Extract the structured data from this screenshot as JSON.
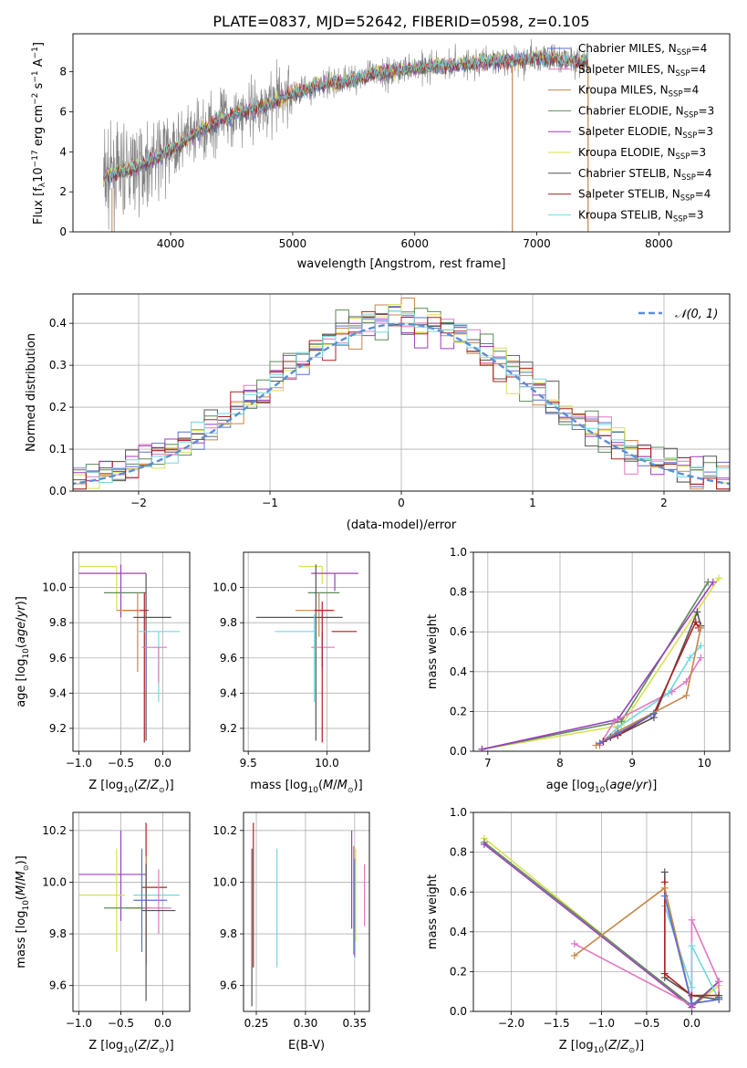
{
  "title": "PLATE=0837, MJD=52642, FIBERID=0598, z=0.105",
  "chart_data": [
    {
      "id": "spectrum",
      "type": "line",
      "xlabel": "wavelength [Angstrom, rest frame]",
      "ylabel": "Flux [f_λ 10^-17 erg cm^-2 s^-1 A^-1]",
      "ylabel_parts": [
        "Flux [f",
        "λ",
        "10",
        "−17",
        " erg cm",
        "−2",
        " s",
        "−1",
        " A",
        "−1",
        "]"
      ],
      "xlim": [
        3200,
        8580
      ],
      "ylim": [
        0,
        9.9
      ],
      "xticks": [
        4000,
        5000,
        6000,
        7000,
        8000
      ],
      "yticks": [
        0,
        2,
        4,
        6,
        8
      ],
      "legend_position": "top-right",
      "legend": [
        {
          "name": "Chabrier MILES, N",
          "sub": "SSP",
          "tail": "=4",
          "color": "#5a6fd8"
        },
        {
          "name": "Salpeter MILES, N",
          "sub": "SSP",
          "tail": "=4",
          "color": "#e377c2"
        },
        {
          "name": "Kroupa MILES, N",
          "sub": "SSP",
          "tail": "=4",
          "color": "#c7864a"
        },
        {
          "name": "Chabrier ELODIE, N",
          "sub": "SSP",
          "tail": "=3",
          "color": "#5a8a5a"
        },
        {
          "name": "Salpeter ELODIE, N",
          "sub": "SSP",
          "tail": "=3",
          "color": "#9c3fc0"
        },
        {
          "name": "Kroupa ELODIE, N",
          "sub": "SSP",
          "tail": "=3",
          "color": "#d8e050"
        },
        {
          "name": "Chabrier STELIB, N",
          "sub": "SSP",
          "tail": "=4",
          "color": "#555555"
        },
        {
          "name": "Salpeter STELIB, N",
          "sub": "SSP",
          "tail": "=4",
          "color": "#b02020"
        },
        {
          "name": "Kroupa STELIB, N",
          "sub": "SSP",
          "tail": "=3",
          "color": "#70d8e0"
        }
      ],
      "data_color": "#808080",
      "data_x_range": [
        3450,
        7420
      ],
      "continuum": [
        [
          3450,
          2.7
        ],
        [
          3600,
          3.0
        ],
        [
          3750,
          3.3
        ],
        [
          3900,
          3.7
        ],
        [
          4000,
          4.1
        ],
        [
          4200,
          4.9
        ],
        [
          4400,
          5.6
        ],
        [
          4600,
          6.0
        ],
        [
          4800,
          6.4
        ],
        [
          5000,
          6.9
        ],
        [
          5200,
          7.3
        ],
        [
          5400,
          7.5
        ],
        [
          5600,
          7.8
        ],
        [
          5800,
          8.0
        ],
        [
          6000,
          8.2
        ],
        [
          6200,
          8.3
        ],
        [
          6400,
          8.4
        ],
        [
          6600,
          8.5
        ],
        [
          6800,
          8.6
        ],
        [
          7000,
          8.7
        ],
        [
          7200,
          8.6
        ],
        [
          7420,
          8.5
        ]
      ]
    },
    {
      "id": "residuals",
      "type": "line",
      "xlabel": "(data-model)/error",
      "ylabel": "Normed distribution",
      "xlim": [
        -2.5,
        2.5
      ],
      "ylim": [
        0,
        0.47
      ],
      "xticks": [
        -2,
        -1,
        0,
        1,
        2
      ],
      "yticks": [
        0.0,
        0.1,
        0.2,
        0.3,
        0.4
      ],
      "grid": true,
      "legend_position": "top-right",
      "reference": {
        "name": "𝒩(0, 1)",
        "mean": 0,
        "sigma": 1,
        "color": "#5a8fd8",
        "style": "dashed"
      },
      "histogram_bin_width": 0.1
    },
    {
      "id": "age_vs_Z",
      "type": "scatter",
      "xlabel": "Z [log10(Z/Z☉)]",
      "ylabel": "age [log10(age/yr)]",
      "xlim": [
        -1.07,
        0.32
      ],
      "ylim": [
        9.07,
        10.2
      ],
      "xticks": [
        -1.0,
        -0.5,
        0.0
      ],
      "yticks": [
        9.2,
        9.4,
        9.6,
        9.8,
        10.0
      ],
      "grid": true,
      "points": [
        {
          "x": -0.55,
          "y": 10.12,
          "xerr": [
            0.45,
            0.0
          ],
          "yerr": [
            0.25,
            0.0
          ],
          "color": "#d8e050"
        },
        {
          "x": -0.5,
          "y": 10.08,
          "xerr": [
            0.5,
            0.3
          ],
          "yerr": [
            0.25,
            0.05
          ],
          "color": "#9c3fc0"
        },
        {
          "x": -0.35,
          "y": 9.97,
          "xerr": [
            0.35,
            0.15
          ],
          "yerr": [
            0.0,
            0.0
          ],
          "color": "#5a8a5a"
        },
        {
          "x": -0.22,
          "y": 9.87,
          "xerr": [
            0.25,
            0.05
          ],
          "yerr": [
            0.75,
            0.1
          ],
          "color": "#b02020"
        },
        {
          "x": -0.3,
          "y": 9.87,
          "xerr": [
            0.25,
            0.03
          ],
          "yerr": [
            0.35,
            0.1
          ],
          "color": "#c7864a"
        },
        {
          "x": -0.2,
          "y": 9.83,
          "xerr": [
            0.15,
            0.3
          ],
          "yerr": [
            0.7,
            0.25
          ],
          "color": "#555555"
        },
        {
          "x": -0.05,
          "y": 9.75,
          "xerr": [
            0.25,
            0.25
          ],
          "yerr": [
            0.4,
            0.0
          ],
          "color": "#70d8e0"
        },
        {
          "x": -0.2,
          "y": 9.75,
          "xerr": [
            0.0,
            0.0
          ],
          "yerr": [
            0.33,
            0.0
          ],
          "color": "#5a6fd8"
        },
        {
          "x": -0.05,
          "y": 9.66,
          "xerr": [
            0.2,
            0.1
          ],
          "yerr": [
            0.2,
            0.0
          ],
          "color": "#e377c2"
        }
      ]
    },
    {
      "id": "age_vs_mass",
      "type": "scatter",
      "xlabel": "mass [log10(M/M☉)]",
      "ylabel": "",
      "xlim": [
        9.47,
        10.27
      ],
      "ylim": [
        9.07,
        10.2
      ],
      "xticks": [
        9.5,
        10.0
      ],
      "yticks": [
        9.2,
        9.4,
        9.6,
        9.8,
        10.0
      ],
      "grid": true,
      "points": [
        {
          "x": 9.97,
          "y": 10.12,
          "xerr": [
            0.15,
            0.0
          ],
          "yerr": [
            0.1,
            0.0
          ],
          "color": "#d8e050"
        },
        {
          "x": 10.05,
          "y": 10.08,
          "xerr": [
            0.15,
            0.15
          ],
          "yerr": [
            0.1,
            0.0
          ],
          "color": "#9c3fc0"
        },
        {
          "x": 9.95,
          "y": 9.97,
          "xerr": [
            0.07,
            0.13
          ],
          "yerr": [
            0.0,
            0.0
          ],
          "color": "#5a8a5a"
        },
        {
          "x": 9.95,
          "y": 9.87,
          "xerr": [
            0.15,
            0.1
          ],
          "yerr": [
            0.15,
            0.1
          ],
          "color": "#c7864a"
        },
        {
          "x": 9.93,
          "y": 9.83,
          "xerr": [
            0.38,
            0.17
          ],
          "yerr": [
            0.7,
            0.3
          ],
          "color": "#555555"
        },
        {
          "x": 9.92,
          "y": 9.75,
          "xerr": [
            0.25,
            0.0
          ],
          "yerr": [
            0.4,
            0.1
          ],
          "color": "#70d8e0"
        },
        {
          "x": 9.97,
          "y": 9.75,
          "xerr": [
            0.0,
            0.0
          ],
          "yerr": [
            0.2,
            0.0
          ],
          "color": "#5a6fd8"
        },
        {
          "x": 10.1,
          "y": 9.75,
          "xerr": [
            0.07,
            0.09
          ],
          "yerr": [
            0.0,
            0.0
          ],
          "color": "#b02020"
        },
        {
          "x": 9.98,
          "y": 9.66,
          "xerr": [
            0.08,
            0.07
          ],
          "yerr": [
            0.0,
            0.0
          ],
          "color": "#e377c2"
        },
        {
          "x": 9.97,
          "y": 9.87,
          "xerr": [
            0.05,
            0.07
          ],
          "yerr": [
            0.75,
            0.05
          ],
          "color": "#b02020"
        }
      ]
    },
    {
      "id": "massweight_vs_age",
      "type": "line",
      "xlabel": "age  [log10(age/yr)]",
      "ylabel": "mass weight",
      "xlim": [
        6.8,
        10.35
      ],
      "ylim": [
        0,
        1.0
      ],
      "xticks": [
        7,
        8,
        9,
        10
      ],
      "yticks": [
        0.0,
        0.2,
        0.4,
        0.6,
        0.8,
        1.0
      ],
      "grid": true,
      "series": [
        {
          "color": "#d8e050",
          "x": [
            6.92,
            8.85,
            10.2
          ],
          "y": [
            0.01,
            0.13,
            0.87
          ]
        },
        {
          "color": "#5a8a5a",
          "x": [
            6.92,
            8.85,
            10.05
          ],
          "y": [
            0.01,
            0.15,
            0.85
          ]
        },
        {
          "color": "#9c3fc0",
          "x": [
            6.92,
            8.8,
            10.12
          ],
          "y": [
            0.01,
            0.16,
            0.85
          ]
        },
        {
          "color": "#e377c2",
          "x": [
            8.55,
            8.75,
            9.55,
            9.75,
            9.95
          ],
          "y": [
            0.03,
            0.15,
            0.3,
            0.35,
            0.47
          ]
        },
        {
          "color": "#70d8e0",
          "x": [
            8.6,
            8.8,
            9.5,
            9.8,
            9.95
          ],
          "y": [
            0.05,
            0.12,
            0.29,
            0.47,
            0.53
          ]
        },
        {
          "color": "#555555",
          "x": [
            8.6,
            8.7,
            8.8,
            9.3,
            9.9,
            9.95
          ],
          "y": [
            0.05,
            0.07,
            0.08,
            0.17,
            0.7,
            0.63
          ]
        },
        {
          "color": "#b02020",
          "x": [
            8.6,
            8.8,
            9.3,
            9.88,
            9.92
          ],
          "y": [
            0.05,
            0.08,
            0.19,
            0.65,
            0.62
          ]
        },
        {
          "color": "#c7864a",
          "x": [
            8.5,
            8.8,
            9.75,
            9.95
          ],
          "y": [
            0.03,
            0.1,
            0.28,
            0.62
          ]
        },
        {
          "color": "#5a6fd8",
          "x": [
            8.55,
            8.8,
            9.3
          ],
          "y": [
            0.04,
            0.09,
            0.19
          ]
        }
      ]
    },
    {
      "id": "mass_vs_Z",
      "type": "scatter",
      "xlabel": "Z [log10(Z/Z☉)]",
      "ylabel": "mass [log10(M/M☉)]",
      "xlim": [
        -1.07,
        0.32
      ],
      "ylim": [
        9.5,
        10.27
      ],
      "xticks": [
        -1.0,
        -0.5,
        0.0
      ],
      "yticks": [
        9.6,
        9.8,
        10.0,
        10.2
      ],
      "grid": true,
      "points": [
        {
          "x": -0.5,
          "y": 10.03,
          "xerr": [
            0.5,
            0.3
          ],
          "yerr": [
            0.18,
            0.17
          ],
          "color": "#9c3fc0"
        },
        {
          "x": -0.55,
          "y": 9.95,
          "xerr": [
            0.45,
            0.1
          ],
          "yerr": [
            0.22,
            0.18
          ],
          "color": "#d8e050"
        },
        {
          "x": -0.2,
          "y": 9.98,
          "xerr": [
            0.05,
            0.25
          ],
          "yerr": [
            0.3,
            0.25
          ],
          "color": "#b02020"
        },
        {
          "x": -0.2,
          "y": 9.9,
          "xerr": [
            0.25,
            0.05
          ],
          "yerr": [
            0.14,
            0.2
          ],
          "color": "#c7864a"
        },
        {
          "x": -0.05,
          "y": 9.95,
          "xerr": [
            0.3,
            0.25
          ],
          "yerr": [
            0.0,
            0.0
          ],
          "color": "#70d8e0"
        },
        {
          "x": -0.25,
          "y": 9.93,
          "xerr": [
            0.1,
            0.3
          ],
          "yerr": [
            0.2,
            0.2
          ],
          "color": "#5a6fd8"
        },
        {
          "x": -0.05,
          "y": 9.9,
          "xerr": [
            0.2,
            0.15
          ],
          "yerr": [
            0.1,
            0.15
          ],
          "color": "#e377c2"
        },
        {
          "x": -0.35,
          "y": 9.9,
          "xerr": [
            0.35,
            0.12
          ],
          "yerr": [
            0.0,
            0.0
          ],
          "color": "#5a8a5a"
        },
        {
          "x": -0.2,
          "y": 9.89,
          "xerr": [
            0.05,
            0.35
          ],
          "yerr": [
            0.35,
            0.18
          ],
          "color": "#555555"
        }
      ]
    },
    {
      "id": "mass_vs_EBV",
      "type": "scatter",
      "xlabel": "E(B-V)",
      "ylabel": "",
      "xlim": [
        0.237,
        0.365
      ],
      "ylim": [
        9.5,
        10.27
      ],
      "xticks": [
        0.25,
        0.3,
        0.35
      ],
      "yticks": [
        9.6,
        9.8,
        10.0,
        10.2
      ],
      "grid": true,
      "points": [
        {
          "x": 0.2455,
          "y": 9.8,
          "xerr": [
            0,
            0
          ],
          "yerr": [
            0.28,
            0.33
          ],
          "color": "#555555"
        },
        {
          "x": 0.247,
          "y": 9.95,
          "xerr": [
            0,
            0
          ],
          "yerr": [
            0.28,
            0.28
          ],
          "color": "#b02020"
        },
        {
          "x": 0.271,
          "y": 9.9,
          "xerr": [
            0,
            0
          ],
          "yerr": [
            0.23,
            0.23
          ],
          "color": "#70d8e0"
        },
        {
          "x": 0.347,
          "y": 10.01,
          "xerr": [
            0,
            0
          ],
          "yerr": [
            0.19,
            0.19
          ],
          "color": "#9c3fc0"
        },
        {
          "x": 0.349,
          "y": 9.85,
          "xerr": [
            0,
            0
          ],
          "yerr": [
            0.13,
            0.29
          ],
          "color": "#c7864a"
        },
        {
          "x": 0.35,
          "y": 9.83,
          "xerr": [
            0,
            0
          ],
          "yerr": [
            0.12,
            0.26
          ],
          "color": "#5a6fd8"
        },
        {
          "x": 0.351,
          "y": 9.9,
          "xerr": [
            0,
            0
          ],
          "yerr": [
            0.13,
            0.23
          ],
          "color": "#d8e050"
        },
        {
          "x": 0.36,
          "y": 9.95,
          "xerr": [
            0,
            0
          ],
          "yerr": [
            0.12,
            0.12
          ],
          "color": "#e377c2"
        }
      ]
    },
    {
      "id": "massweight_vs_Z",
      "type": "line",
      "xlabel": "Z [log10(Z/Z☉)]",
      "ylabel": "mass weight",
      "xlim": [
        -2.42,
        0.42
      ],
      "ylim": [
        0,
        1.0
      ],
      "xticks": [
        -2.0,
        -1.5,
        -1.0,
        -0.5,
        0.0
      ],
      "yticks": [
        0.0,
        0.2,
        0.4,
        0.6,
        0.8,
        1.0
      ],
      "grid": true,
      "series": [
        {
          "color": "#d8e050",
          "x": [
            -2.3,
            0.0,
            0.3
          ],
          "y": [
            0.87,
            0.02,
            0.13
          ]
        },
        {
          "color": "#5a8a5a",
          "x": [
            -2.3,
            0.0,
            0.3
          ],
          "y": [
            0.85,
            0.03,
            0.15
          ]
        },
        {
          "color": "#9c3fc0",
          "x": [
            -2.3,
            0.0,
            0.3
          ],
          "y": [
            0.84,
            0.02,
            0.15
          ]
        },
        {
          "color": "#e377c2",
          "x": [
            -1.3,
            0.0,
            0.0,
            0.3,
            0.3
          ],
          "y": [
            0.34,
            0.03,
            0.46,
            0.15,
            0.06
          ]
        },
        {
          "color": "#70d8e0",
          "x": [
            -0.3,
            0.0,
            0.0,
            0.3
          ],
          "y": [
            0.53,
            0.12,
            0.33,
            0.06
          ]
        },
        {
          "color": "#555555",
          "x": [
            -0.3,
            -0.3,
            0.0,
            0.3,
            0.3
          ],
          "y": [
            0.7,
            0.17,
            0.08,
            0.06,
            0.07
          ]
        },
        {
          "color": "#b02020",
          "x": [
            -0.3,
            -0.3,
            0.0,
            0.3
          ],
          "y": [
            0.65,
            0.19,
            0.08,
            0.08
          ]
        },
        {
          "color": "#c7864a",
          "x": [
            -1.3,
            -0.3,
            0.0,
            0.3
          ],
          "y": [
            0.28,
            0.62,
            0.04,
            0.06
          ]
        },
        {
          "color": "#5a6fd8",
          "x": [
            -0.3,
            0.0,
            0.3
          ],
          "y": [
            0.58,
            0.04,
            0.06
          ]
        }
      ]
    }
  ]
}
